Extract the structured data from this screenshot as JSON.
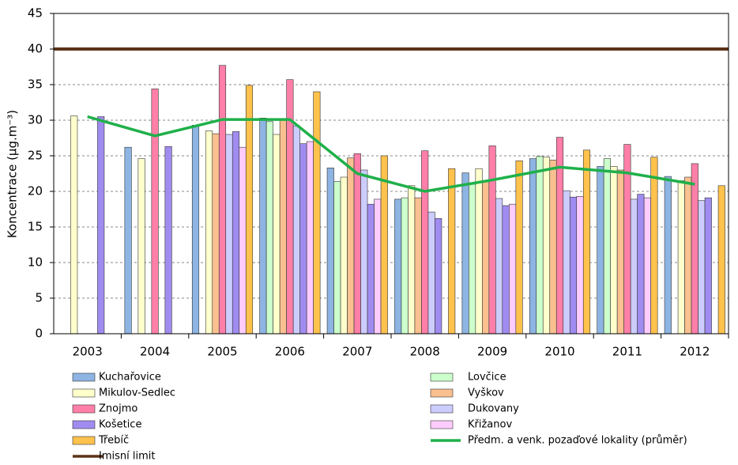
{
  "chart_data": {
    "type": "bar",
    "y_label": "Koncentrace (µg.m⁻³)",
    "categories": [
      "2003",
      "2004",
      "2005",
      "2006",
      "2007",
      "2008",
      "2009",
      "2010",
      "2011",
      "2012"
    ],
    "ylim": [
      0,
      45
    ],
    "yticks": [
      0,
      5,
      10,
      15,
      20,
      25,
      30,
      35,
      40,
      45
    ],
    "grid": true,
    "series": [
      {
        "name": "Kuchařovice",
        "color": "#8db4e2",
        "values": [
          null,
          26.2,
          29.3,
          30.3,
          23.3,
          18.9,
          22.6,
          24.6,
          23.5,
          22.1
        ]
      },
      {
        "name": "Lovčice",
        "color": "#ccffcc",
        "values": [
          null,
          null,
          null,
          29.8,
          21.4,
          19.1,
          21.0,
          24.9,
          24.6,
          null
        ]
      },
      {
        "name": "Mikulov-Sedlec",
        "color": "#ffffcc",
        "values": [
          30.6,
          24.6,
          28.5,
          28.0,
          22.0,
          20.8,
          23.2,
          24.8,
          23.5,
          21.5
        ]
      },
      {
        "name": "Vyškov",
        "color": "#fac090",
        "values": [
          null,
          null,
          28.1,
          30.2,
          24.7,
          19.1,
          21.5,
          24.4,
          23.0,
          22.0
        ]
      },
      {
        "name": "Znojmo",
        "color": "#ff7fa8",
        "values": [
          null,
          34.4,
          37.7,
          35.7,
          25.3,
          25.7,
          26.4,
          27.6,
          26.6,
          23.9
        ]
      },
      {
        "name": "Dukovany",
        "color": "#ccccff",
        "values": [
          null,
          null,
          28.0,
          29.2,
          23.0,
          17.1,
          19.0,
          20.1,
          18.9,
          18.7
        ]
      },
      {
        "name": "Košetice",
        "color": "#a08cf0",
        "values": [
          30.5,
          26.3,
          28.4,
          26.7,
          18.2,
          16.2,
          18.0,
          19.2,
          19.6,
          19.1
        ]
      },
      {
        "name": "Křižanov",
        "color": "#ffccff",
        "values": [
          null,
          null,
          26.2,
          27.0,
          18.9,
          null,
          18.2,
          19.3,
          19.1,
          null
        ]
      },
      {
        "name": "Třebíč",
        "color": "#ffc24d",
        "values": [
          null,
          null,
          34.9,
          34.0,
          25.0,
          23.2,
          24.3,
          25.8,
          24.8,
          20.8
        ]
      }
    ],
    "average": {
      "name": "Předm. a venk. pozaďové lokality (průměr)",
      "color": "#1fb04a",
      "values": [
        30.5,
        27.8,
        30.1,
        30.1,
        22.5,
        20.0,
        21.6,
        23.4,
        22.6,
        21.0
      ]
    },
    "limit": {
      "name": "Imisní limit",
      "color": "#5c3317",
      "value": 40
    }
  }
}
